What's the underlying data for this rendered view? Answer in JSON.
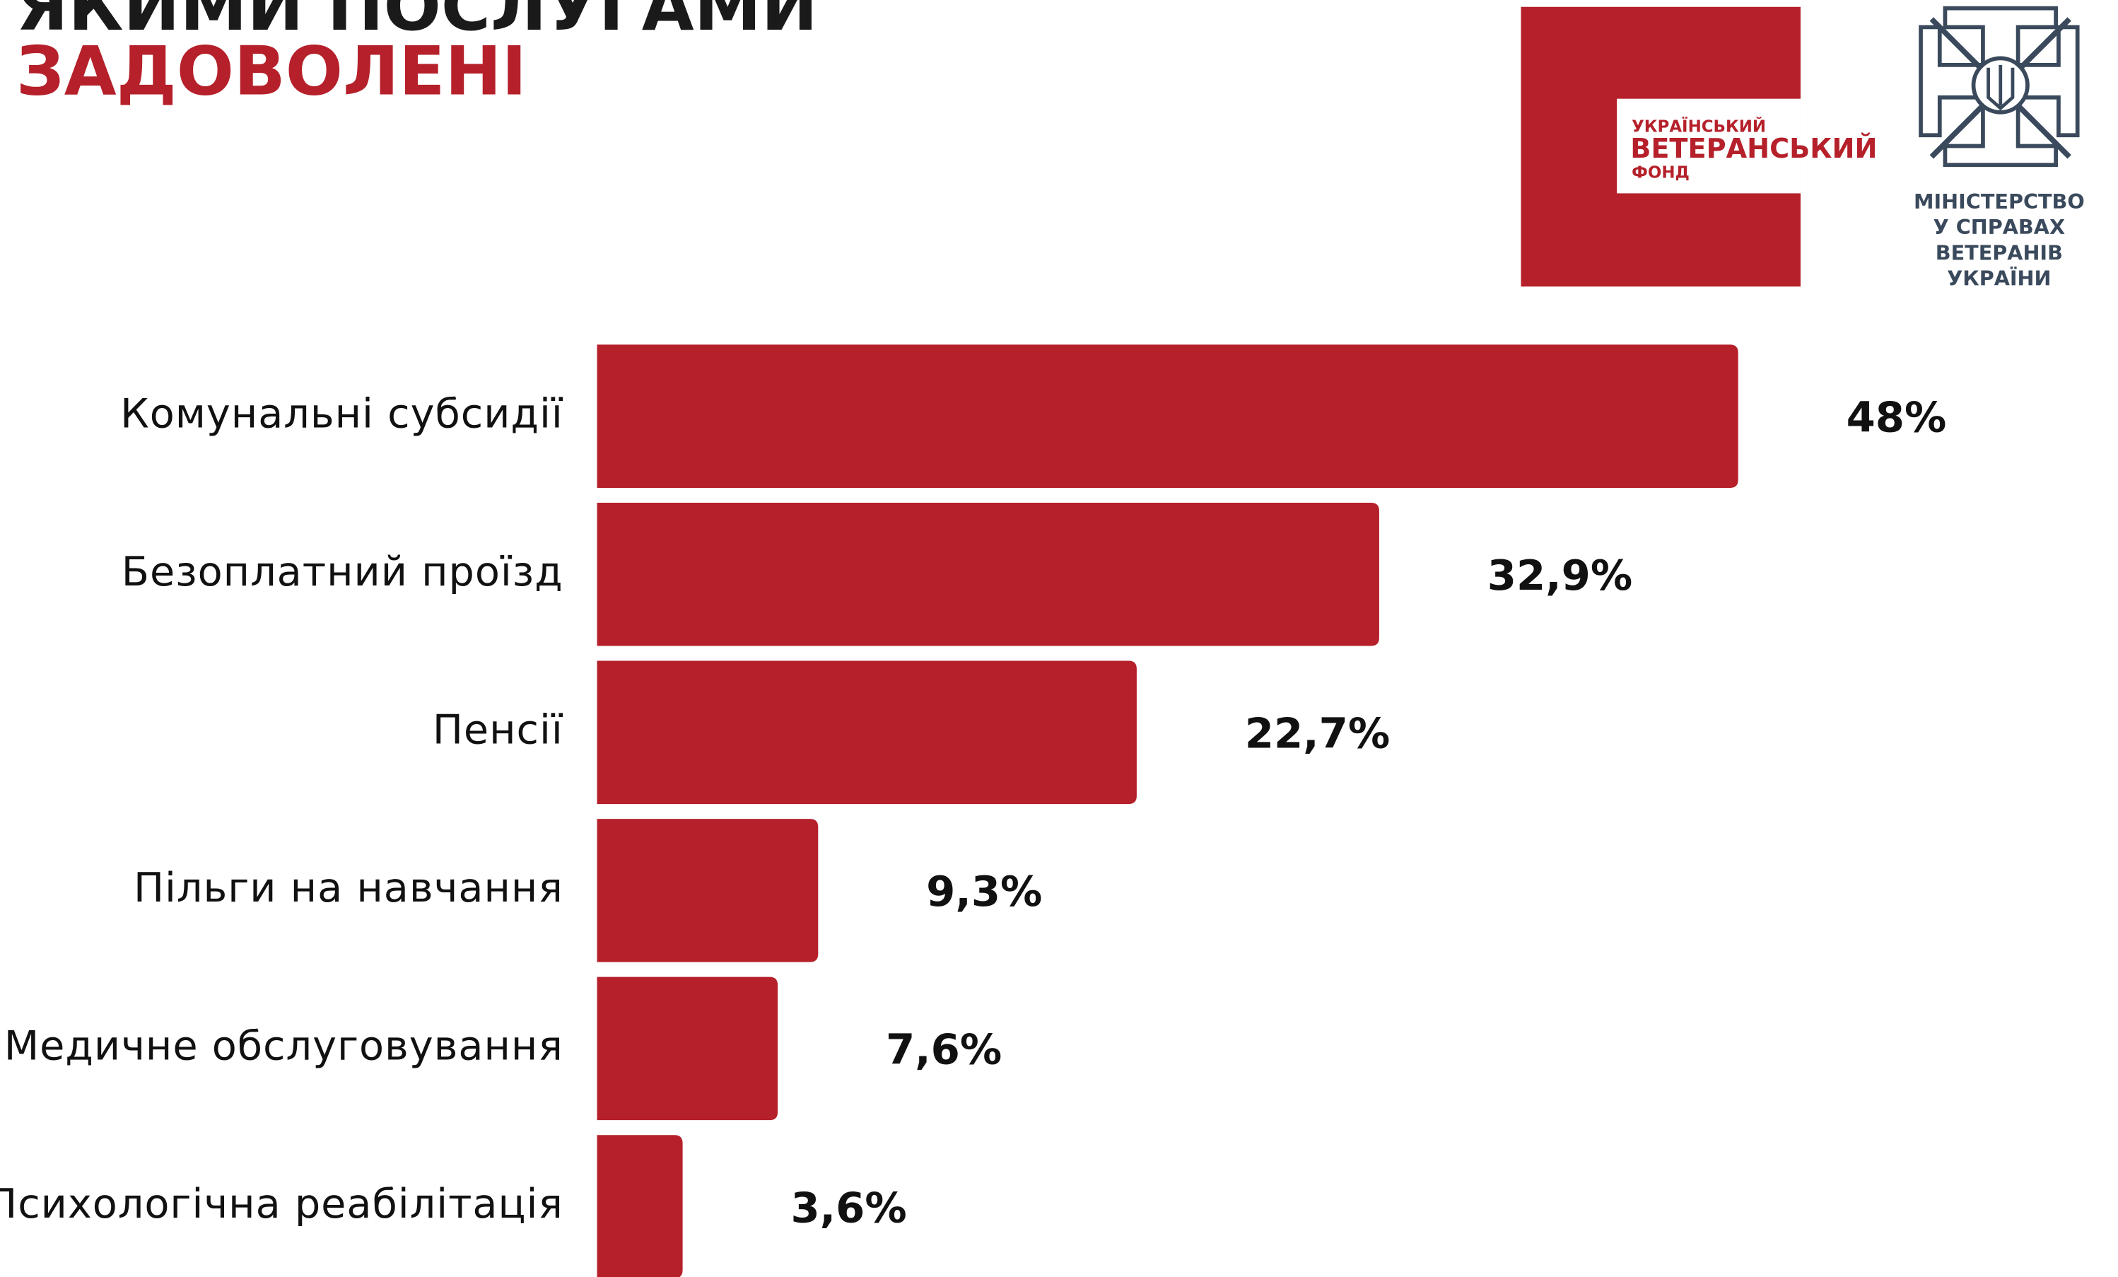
{
  "chart_data": {
    "type": "bar",
    "orientation": "horizontal",
    "title": "ЯКИМИ ПОСЛУГАМИ",
    "title_highlight": "ЗАДОВОЛЕНІ",
    "categories": [
      "Комунальні субсидії",
      "Безоплатний проїзд",
      "Пенсії",
      "Пільги на навчання",
      "Медичне обслуговування",
      "Психологічна реабілітація"
    ],
    "values": [
      48,
      32.9,
      22.7,
      9.3,
      7.6,
      3.6
    ],
    "value_labels": [
      "48%",
      "32,9%",
      "22,7%",
      "9,3%",
      "7,6%",
      "3,6%"
    ],
    "color": "#b5202a"
  },
  "logos": {
    "fund": [
      "УКРАЇНСЬКИЙ",
      "ВЕТЕРАНСЬКИЙ",
      "ФОНД"
    ],
    "ministry": [
      "МІНІСТЕРСТВО",
      "У СПРАВАХ",
      "ВЕТЕРАНІВ",
      "УКРАЇНИ"
    ]
  }
}
